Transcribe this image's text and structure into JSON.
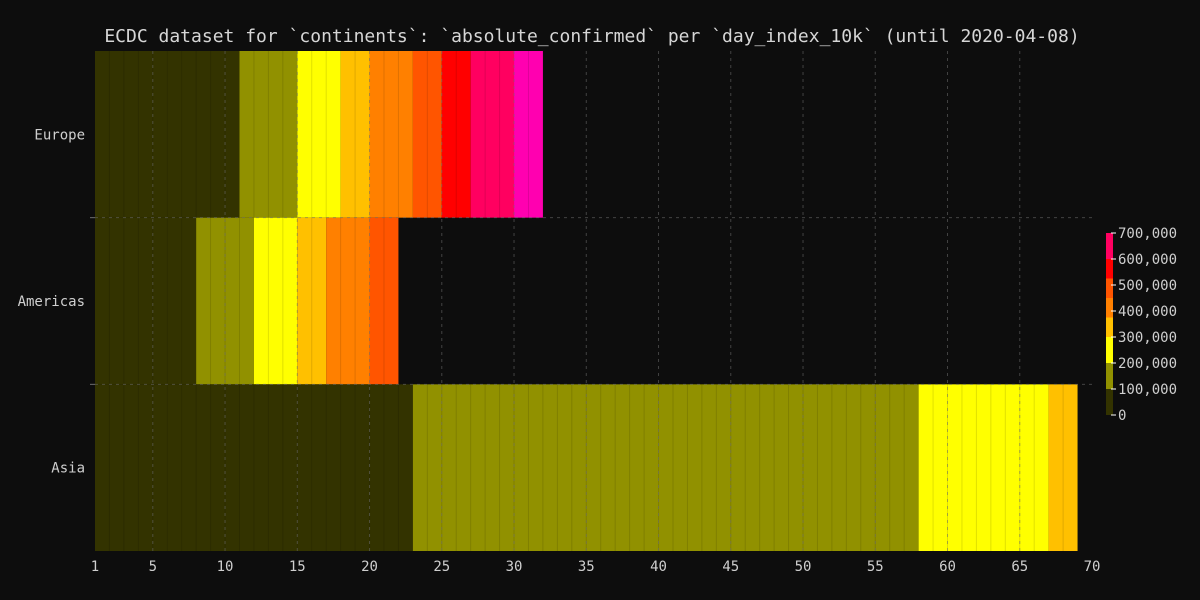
{
  "chart_data": {
    "type": "heatmap",
    "title": "ECDC dataset for `continents`: `absolute_confirmed` per `day_index_10k` (until 2020-04-08)",
    "xlabel": "",
    "ylabel": "",
    "xlim": [
      1,
      70
    ],
    "x_ticks": [
      1,
      5,
      10,
      15,
      20,
      25,
      30,
      35,
      40,
      45,
      50,
      55,
      60,
      65,
      70
    ],
    "rows": [
      {
        "name": "Europe",
        "cells": [
          {
            "x0": 1,
            "x1": 11,
            "value": 0
          },
          {
            "x0": 11,
            "x1": 15,
            "value": 100000
          },
          {
            "x0": 15,
            "x1": 18,
            "value": 200000
          },
          {
            "x0": 18,
            "x1": 20,
            "value": 300000
          },
          {
            "x0": 20,
            "x1": 23,
            "value": 375000
          },
          {
            "x0": 23,
            "x1": 25,
            "value": 450000
          },
          {
            "x0": 25,
            "x1": 27,
            "value": 525000
          },
          {
            "x0": 27,
            "x1": 30,
            "value": 600000
          },
          {
            "x0": 30,
            "x1": 32,
            "value": 700000
          }
        ]
      },
      {
        "name": "Americas",
        "cells": [
          {
            "x0": 1,
            "x1": 8,
            "value": 0
          },
          {
            "x0": 8,
            "x1": 12,
            "value": 100000
          },
          {
            "x0": 12,
            "x1": 15,
            "value": 200000
          },
          {
            "x0": 15,
            "x1": 17,
            "value": 300000
          },
          {
            "x0": 17,
            "x1": 20,
            "value": 375000
          },
          {
            "x0": 20,
            "x1": 22,
            "value": 450000
          }
        ]
      },
      {
        "name": "Asia",
        "cells": [
          {
            "x0": 1,
            "x1": 23,
            "value": 0
          },
          {
            "x0": 23,
            "x1": 58,
            "value": 100000
          },
          {
            "x0": 58,
            "x1": 67,
            "value": 200000
          },
          {
            "x0": 67,
            "x1": 69,
            "value": 300000
          }
        ]
      }
    ],
    "colorbar": {
      "ticks": [
        0,
        100000,
        200000,
        300000,
        400000,
        500000,
        600000,
        700000
      ],
      "tick_labels": [
        "0",
        "100,000",
        "200,000",
        "300,000",
        "400,000",
        "500,000",
        "600,000",
        "700,000"
      ],
      "stops": [
        {
          "value": 0,
          "color": "#333300"
        },
        {
          "value": 100000,
          "color": "#919100"
        },
        {
          "value": 200000,
          "color": "#ffff00"
        },
        {
          "value": 300000,
          "color": "#ffc000"
        },
        {
          "value": 375000,
          "color": "#ff8000"
        },
        {
          "value": 450000,
          "color": "#ff5500"
        },
        {
          "value": 525000,
          "color": "#ff0000"
        },
        {
          "value": 600000,
          "color": "#ff0060"
        },
        {
          "value": 700000,
          "color": "#ff00b0"
        }
      ]
    },
    "grid": true,
    "legend": "right"
  },
  "colors": {
    "background": "#0d0d0d",
    "grid": "#6e6e6e",
    "text": "#cfcfcf"
  }
}
